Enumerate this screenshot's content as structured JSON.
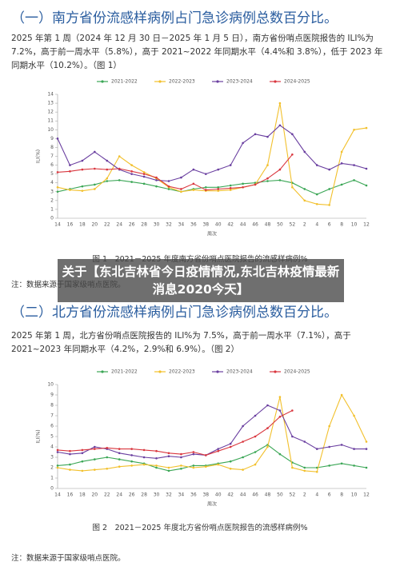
{
  "sections": [
    {
      "heading": "（一）南方省份流感样病例占门急诊病例总数百分比。",
      "paragraph": "2025 年第 1 周（2024 年 12 月 30 日－2025 年 1 月 5 日），南方省份哨点医院报告的 ILI%为 7.2%，高于前一周水平（5.8%），高于 2021~2022 年同期水平（4.4%和 3.8%），低于 2023 年同期水平（10.2%）。（图 1）",
      "caption": "图 1　2021－2025 年度南方省份哨点医院报告的流感样病例%",
      "note": "注：数据来源于国家级哨点医院。"
    },
    {
      "heading": "（二）北方省份流感样病例占门急诊病例总数百分比。",
      "paragraph": "2025 年第 1 周，北方省份哨点医院报告的 ILI%为 7.5%，高于前一周水平（7.1%），高于 2021~2023 年同期水平（4.2%，2.9%和 6.9%）。（图 2）",
      "caption": "图 2　2021－2025 年度北方省份哨点医院报告的流感样病例%",
      "note": "注：数据来源于国家级哨点医院。"
    }
  ],
  "overlay_title": "关于【东北吉林省今日疫情情况,东北吉林疫情最新消息2020今天】",
  "chart_data": [
    {
      "type": "line",
      "x_label": "周次",
      "y_label": "ILI(%)",
      "categories": [
        "14",
        "16",
        "18",
        "20",
        "22",
        "24",
        "26",
        "28",
        "30",
        "32",
        "34",
        "36",
        "38",
        "40",
        "42",
        "44",
        "46",
        "48",
        "50",
        "52",
        "2",
        "4",
        "6",
        "8",
        "10",
        "12"
      ],
      "ylim": [
        0,
        14
      ],
      "yticks": [
        0,
        1,
        2,
        3,
        4,
        5,
        6,
        7,
        8,
        9,
        10,
        11,
        12,
        13,
        14
      ],
      "series": [
        {
          "name": "2021-2022",
          "color": "#3aa655",
          "values": [
            3.0,
            3.3,
            3.6,
            3.8,
            4.2,
            4.3,
            4.1,
            3.9,
            3.6,
            3.3,
            3.0,
            3.3,
            3.5,
            3.5,
            3.7,
            3.9,
            4.0,
            4.2,
            4.3,
            4.0,
            3.3,
            2.7,
            3.3,
            3.8,
            4.3,
            3.7
          ]
        },
        {
          "name": "2022-2023",
          "color": "#f2c02c",
          "values": [
            3.5,
            3.2,
            3.1,
            3.3,
            4.5,
            7.0,
            6.0,
            5.2,
            4.5,
            3.5,
            3.0,
            3.2,
            3.1,
            3.1,
            3.2,
            3.5,
            3.8,
            6.0,
            13.0,
            3.5,
            2.0,
            1.6,
            1.5,
            7.5,
            10.0,
            10.2
          ]
        },
        {
          "name": "2023-2024",
          "color": "#6a3fa0",
          "values": [
            9.0,
            6.0,
            6.5,
            7.5,
            6.5,
            5.5,
            5.0,
            4.7,
            4.3,
            4.2,
            4.6,
            5.5,
            5.0,
            5.5,
            6.0,
            8.5,
            9.5,
            9.2,
            10.5,
            9.5,
            7.5,
            6.0,
            5.5,
            6.2,
            6.0,
            5.6
          ]
        },
        {
          "name": "2024-2025",
          "color": "#d9363e",
          "values": [
            5.2,
            5.3,
            5.5,
            5.6,
            5.5,
            5.6,
            5.3,
            5.0,
            4.6,
            3.6,
            3.3,
            3.9,
            3.2,
            3.3,
            3.4,
            3.5,
            3.8,
            4.5,
            5.5,
            7.2,
            null,
            null,
            null,
            null,
            null,
            null
          ]
        }
      ]
    },
    {
      "type": "line",
      "x_label": "周次",
      "y_label": "ILI(%)",
      "categories": [
        "14",
        "16",
        "18",
        "20",
        "22",
        "24",
        "26",
        "28",
        "30",
        "32",
        "34",
        "36",
        "38",
        "40",
        "42",
        "44",
        "46",
        "48",
        "50",
        "52",
        "2",
        "4",
        "6",
        "8",
        "10",
        "12"
      ],
      "ylim": [
        0,
        10
      ],
      "yticks": [
        0,
        1,
        2,
        3,
        4,
        5,
        6,
        7,
        8,
        9,
        10
      ],
      "series": [
        {
          "name": "2021-2022",
          "color": "#3aa655",
          "values": [
            2.2,
            2.3,
            2.6,
            2.8,
            3.0,
            2.8,
            2.6,
            2.4,
            2.0,
            1.7,
            1.9,
            2.2,
            2.2,
            2.4,
            2.6,
            3.0,
            3.5,
            4.2,
            3.3,
            2.5,
            2.0,
            2.0,
            2.2,
            2.4,
            2.2,
            2.0
          ]
        },
        {
          "name": "2022-2023",
          "color": "#f2c02c",
          "values": [
            2.0,
            1.8,
            1.7,
            1.8,
            1.9,
            2.1,
            2.2,
            2.3,
            2.2,
            2.0,
            2.2,
            2.0,
            2.1,
            2.3,
            1.9,
            1.8,
            2.3,
            4.0,
            8.8,
            2.0,
            1.7,
            1.6,
            6.0,
            9.0,
            7.0,
            4.5
          ]
        },
        {
          "name": "2023-2024",
          "color": "#6a3fa0",
          "values": [
            3.5,
            3.3,
            3.4,
            4.0,
            3.8,
            3.4,
            3.2,
            3.0,
            2.9,
            3.1,
            3.0,
            3.3,
            3.2,
            3.8,
            4.3,
            6.0,
            7.0,
            8.0,
            7.5,
            5.0,
            4.5,
            3.8,
            4.0,
            4.2,
            3.8,
            3.8
          ]
        },
        {
          "name": "2024-2025",
          "color": "#d9363e",
          "values": [
            3.7,
            3.6,
            3.7,
            3.8,
            3.9,
            3.8,
            3.8,
            3.7,
            3.6,
            3.4,
            3.3,
            3.5,
            3.2,
            3.6,
            4.0,
            4.5,
            5.0,
            5.8,
            6.9,
            7.5,
            null,
            null,
            null,
            null,
            null,
            null
          ]
        }
      ]
    }
  ]
}
